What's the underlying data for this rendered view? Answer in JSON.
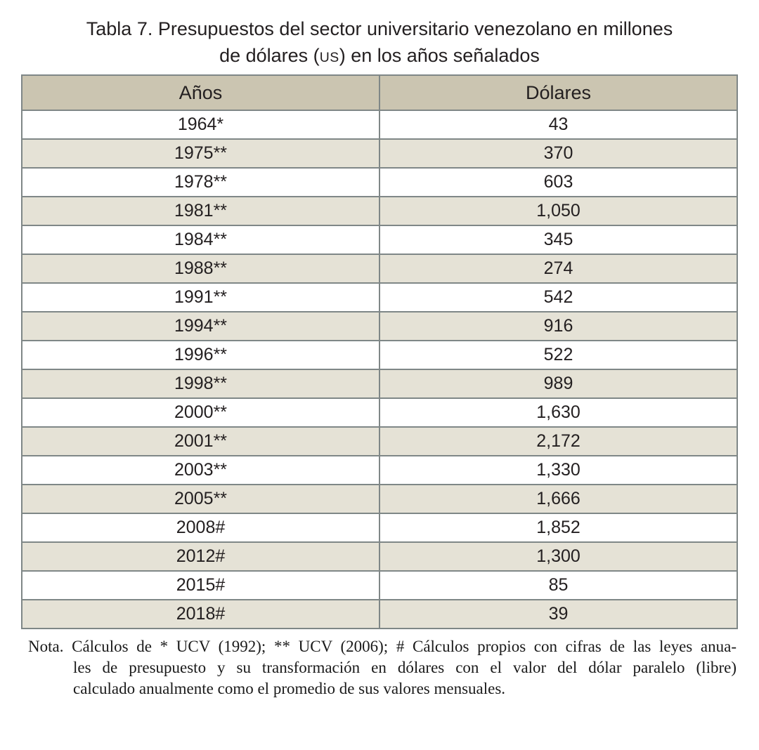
{
  "title": {
    "line1": "Tabla 7. Presupuestos del sector universitario venezolano en millones",
    "line2_pre": "de dólares (",
    "line2_caps": "US",
    "line2_post": ") en los años señalados"
  },
  "table": {
    "headers": [
      "Años",
      "Dólares"
    ],
    "rows": [
      {
        "year": "1964*",
        "dollars": "43"
      },
      {
        "year": "1975**",
        "dollars": "370"
      },
      {
        "year": "1978**",
        "dollars": "603"
      },
      {
        "year": "1981**",
        "dollars": "1,050"
      },
      {
        "year": "1984**",
        "dollars": "345"
      },
      {
        "year": "1988**",
        "dollars": "274"
      },
      {
        "year": "1991**",
        "dollars": "542"
      },
      {
        "year": "1994**",
        "dollars": "916"
      },
      {
        "year": "1996**",
        "dollars": "522"
      },
      {
        "year": "1998**",
        "dollars": "989"
      },
      {
        "year": "2000**",
        "dollars": "1,630"
      },
      {
        "year": "2001**",
        "dollars": "2,172"
      },
      {
        "year": "2003**",
        "dollars": "1,330"
      },
      {
        "year": "2005**",
        "dollars": "1,666"
      },
      {
        "year": "2008#",
        "dollars": "1,852"
      },
      {
        "year": "2012#",
        "dollars": "1,300"
      },
      {
        "year": "2015#",
        "dollars": "85"
      },
      {
        "year": "2018#",
        "dollars": "39"
      }
    ]
  },
  "note": {
    "lines": [
      "Nota. Cálculos de * UCV (1992); ** UCV (2006); # Cálculos propios con cifras de las leyes anua-",
      "les de presupuesto y su transformación en dólares con el valor del dólar paralelo (libre)",
      "calculado anualmente como el promedio de sus valores mensuales."
    ]
  },
  "colors": {
    "header_fill": "#cbc5b1",
    "row_alt_fill": "#e5e2d6",
    "border": "#7f8787",
    "text": "#231f20"
  }
}
